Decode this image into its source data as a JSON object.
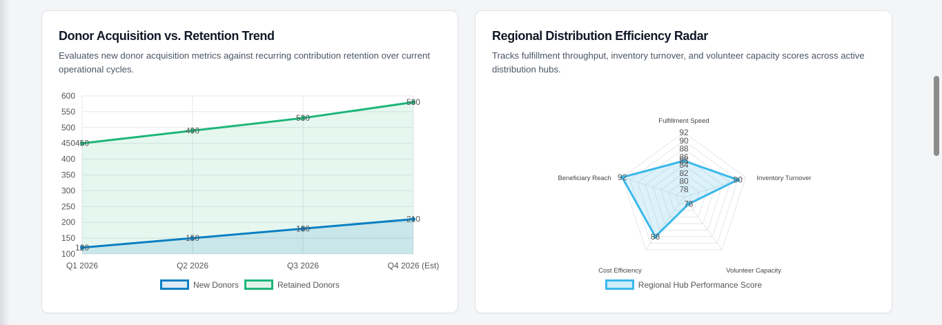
{
  "cards": {
    "acquisition": {
      "title": "Donor Acquisition vs. Retention Trend",
      "description": "Evaluates new donor acquisition metrics against recurring contribution retention over current operational cycles.",
      "legend": [
        {
          "label": "New Donors",
          "color": "#0a7fc2",
          "fill": "#dcebf5"
        },
        {
          "label": "Retained Donors",
          "color": "#1db57a",
          "fill": "#e1f4ec"
        }
      ]
    },
    "radar": {
      "title": "Regional Distribution Efficiency Radar",
      "description": "Tracks fulfillment throughput, inventory turnover, and volunteer capacity scores across active distribution hubs.",
      "legend": [
        {
          "label": "Regional Hub Performance Score",
          "color": "#3bb8ea",
          "fill": "#cdeefb"
        }
      ]
    }
  },
  "chart_data": [
    {
      "type": "area",
      "categories": [
        "Q1 2026",
        "Q2 2026",
        "Q3 2026",
        "Q4 2026 (Est)"
      ],
      "series": [
        {
          "name": "New Donors",
          "values": [
            120,
            150,
            180,
            210
          ],
          "color": "#0a7fc2"
        },
        {
          "name": "Retained Donors",
          "values": [
            450,
            490,
            530,
            580
          ],
          "color": "#1db57a"
        }
      ],
      "yticks": [
        100,
        150,
        200,
        250,
        300,
        350,
        400,
        450,
        500,
        550,
        600
      ],
      "ylim": [
        100,
        600
      ],
      "data_labels": [
        "120",
        "150",
        "180",
        "210",
        "450",
        "490",
        "530",
        "580"
      ],
      "grid": true,
      "legend_position": "bottom"
    },
    {
      "type": "radar",
      "axes": [
        "Fulfillment Speed",
        "Inventory Turnover",
        "Volunteer Capacity",
        "Cost Efficiency",
        "Beneficiary Reach"
      ],
      "series": [
        {
          "name": "Regional Hub Performance Score",
          "values": [
            85,
            90,
            78,
            88,
            92
          ],
          "color": "#3bb8ea"
        }
      ],
      "rticks": [
        "92",
        "90",
        "88",
        "86",
        "84",
        "82",
        "80",
        "78"
      ],
      "rlim": [
        76,
        92
      ],
      "data_labels": [
        "85",
        "90",
        "78",
        "88",
        "92"
      ],
      "legend_position": "bottom"
    }
  ]
}
